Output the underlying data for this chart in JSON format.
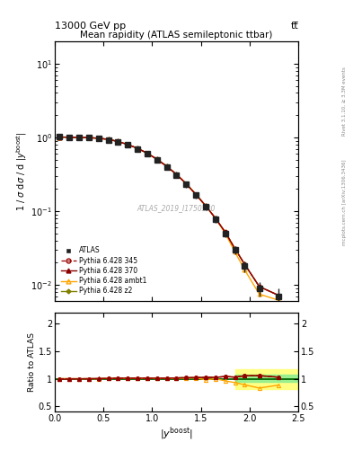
{
  "title_top": "13000 GeV pp",
  "title_top_right": "tt̅",
  "main_title": "Mean rapidity (ATLAS semileptonic ttbar)",
  "watermark": "ATLAS_2019_I1750330",
  "right_label_top": "Rivet 3.1.10, ≥ 3.3M events",
  "right_label_bot": "mcplots.cern.ch [arXiv:1306.3436]",
  "ylabel_main": "1 / σ dσ / d |y$^{boost}$|",
  "ylabel_ratio": "Ratio to ATLAS",
  "xlabel": "|y$^{boost}$|",
  "xlim": [
    0,
    2.5
  ],
  "ylim_main": [
    0.006,
    20
  ],
  "ylim_ratio": [
    0.4,
    2.2
  ],
  "atlas_x": [
    0.05,
    0.15,
    0.25,
    0.35,
    0.45,
    0.55,
    0.65,
    0.75,
    0.85,
    0.95,
    1.05,
    1.15,
    1.25,
    1.35,
    1.45,
    1.55,
    1.65,
    1.75,
    1.85,
    1.95,
    2.1,
    2.3
  ],
  "atlas_y": [
    1.02,
    1.01,
    1.0,
    0.99,
    0.97,
    0.93,
    0.87,
    0.79,
    0.7,
    0.6,
    0.5,
    0.4,
    0.31,
    0.23,
    0.165,
    0.115,
    0.078,
    0.05,
    0.03,
    0.018,
    0.009,
    0.007
  ],
  "atlas_yerr": [
    0.04,
    0.03,
    0.03,
    0.03,
    0.03,
    0.03,
    0.03,
    0.03,
    0.03,
    0.03,
    0.03,
    0.03,
    0.025,
    0.02,
    0.015,
    0.012,
    0.009,
    0.006,
    0.004,
    0.003,
    0.002,
    0.002
  ],
  "py345_x": [
    0.05,
    0.15,
    0.25,
    0.35,
    0.45,
    0.55,
    0.65,
    0.75,
    0.85,
    0.95,
    1.05,
    1.15,
    1.25,
    1.35,
    1.45,
    1.55,
    1.65,
    1.75,
    1.85,
    1.95,
    2.1,
    2.3
  ],
  "py345_y": [
    1.01,
    1.005,
    0.998,
    0.99,
    0.975,
    0.94,
    0.88,
    0.8,
    0.71,
    0.61,
    0.505,
    0.405,
    0.315,
    0.235,
    0.168,
    0.118,
    0.08,
    0.052,
    0.031,
    0.019,
    0.0095,
    0.0072
  ],
  "py370_x": [
    0.05,
    0.15,
    0.25,
    0.35,
    0.45,
    0.55,
    0.65,
    0.75,
    0.85,
    0.95,
    1.05,
    1.15,
    1.25,
    1.35,
    1.45,
    1.55,
    1.65,
    1.75,
    1.85,
    1.95,
    2.1,
    2.3
  ],
  "py370_y": [
    1.01,
    1.005,
    0.998,
    0.99,
    0.975,
    0.94,
    0.88,
    0.8,
    0.71,
    0.61,
    0.505,
    0.405,
    0.315,
    0.235,
    0.168,
    0.118,
    0.08,
    0.052,
    0.031,
    0.019,
    0.0095,
    0.0072
  ],
  "pyambt1_x": [
    0.05,
    0.15,
    0.25,
    0.35,
    0.45,
    0.55,
    0.65,
    0.75,
    0.85,
    0.95,
    1.05,
    1.15,
    1.25,
    1.35,
    1.45,
    1.55,
    1.65,
    1.75,
    1.85,
    1.95,
    2.1,
    2.3
  ],
  "pyambt1_y": [
    1.01,
    1.005,
    0.998,
    0.99,
    0.975,
    0.94,
    0.88,
    0.8,
    0.71,
    0.61,
    0.505,
    0.405,
    0.315,
    0.235,
    0.168,
    0.118,
    0.08,
    0.05,
    0.028,
    0.016,
    0.0075,
    0.0062
  ],
  "pyz2_x": [
    0.05,
    0.15,
    0.25,
    0.35,
    0.45,
    0.55,
    0.65,
    0.75,
    0.85,
    0.95,
    1.05,
    1.15,
    1.25,
    1.35,
    1.45,
    1.55,
    1.65,
    1.75,
    1.85,
    1.95,
    2.1,
    2.3
  ],
  "pyz2_y": [
    1.01,
    1.005,
    0.998,
    0.99,
    0.975,
    0.94,
    0.88,
    0.8,
    0.71,
    0.61,
    0.505,
    0.405,
    0.315,
    0.235,
    0.168,
    0.118,
    0.08,
    0.052,
    0.031,
    0.019,
    0.0095,
    0.0072
  ],
  "ratio_py345": [
    1.0,
    1.0,
    1.0,
    1.0,
    1.0,
    1.005,
    1.01,
    1.01,
    1.01,
    1.01,
    1.01,
    1.01,
    1.015,
    1.02,
    1.02,
    1.025,
    1.025,
    1.04,
    1.03,
    1.055,
    1.055,
    1.028
  ],
  "ratio_py370": [
    0.99,
    0.995,
    0.998,
    1.0,
    1.005,
    1.005,
    1.01,
    1.01,
    1.01,
    1.01,
    1.01,
    1.01,
    1.015,
    1.02,
    1.02,
    1.025,
    1.025,
    1.04,
    1.03,
    1.055,
    1.055,
    1.028
  ],
  "ratio_pyambt1": [
    1.0,
    1.0,
    0.999,
    1.0,
    1.0,
    1.005,
    1.005,
    1.005,
    1.005,
    1.005,
    1.005,
    1.005,
    1.01,
    1.01,
    1.015,
    0.98,
    1.0,
    0.96,
    0.93,
    0.89,
    0.83,
    0.885
  ],
  "ratio_pyz2": [
    1.0,
    1.0,
    1.0,
    1.0,
    1.0,
    1.005,
    1.01,
    1.01,
    1.01,
    1.01,
    1.01,
    1.01,
    1.015,
    1.02,
    1.02,
    1.025,
    1.025,
    1.04,
    1.03,
    1.055,
    1.06,
    1.028
  ],
  "green_band_xstart": 1.85,
  "green_band_ylo": 0.95,
  "green_band_yhi": 1.07,
  "yellow_band_ylo": 0.82,
  "yellow_band_yhi": 1.18,
  "color_atlas": "#222222",
  "color_py345": "#9B0000",
  "color_py370": "#8B0000",
  "color_pyambt1": "#FFA500",
  "color_pyz2": "#808000",
  "color_green_band": "#90EE90",
  "color_yellow_band": "#FFFF77"
}
